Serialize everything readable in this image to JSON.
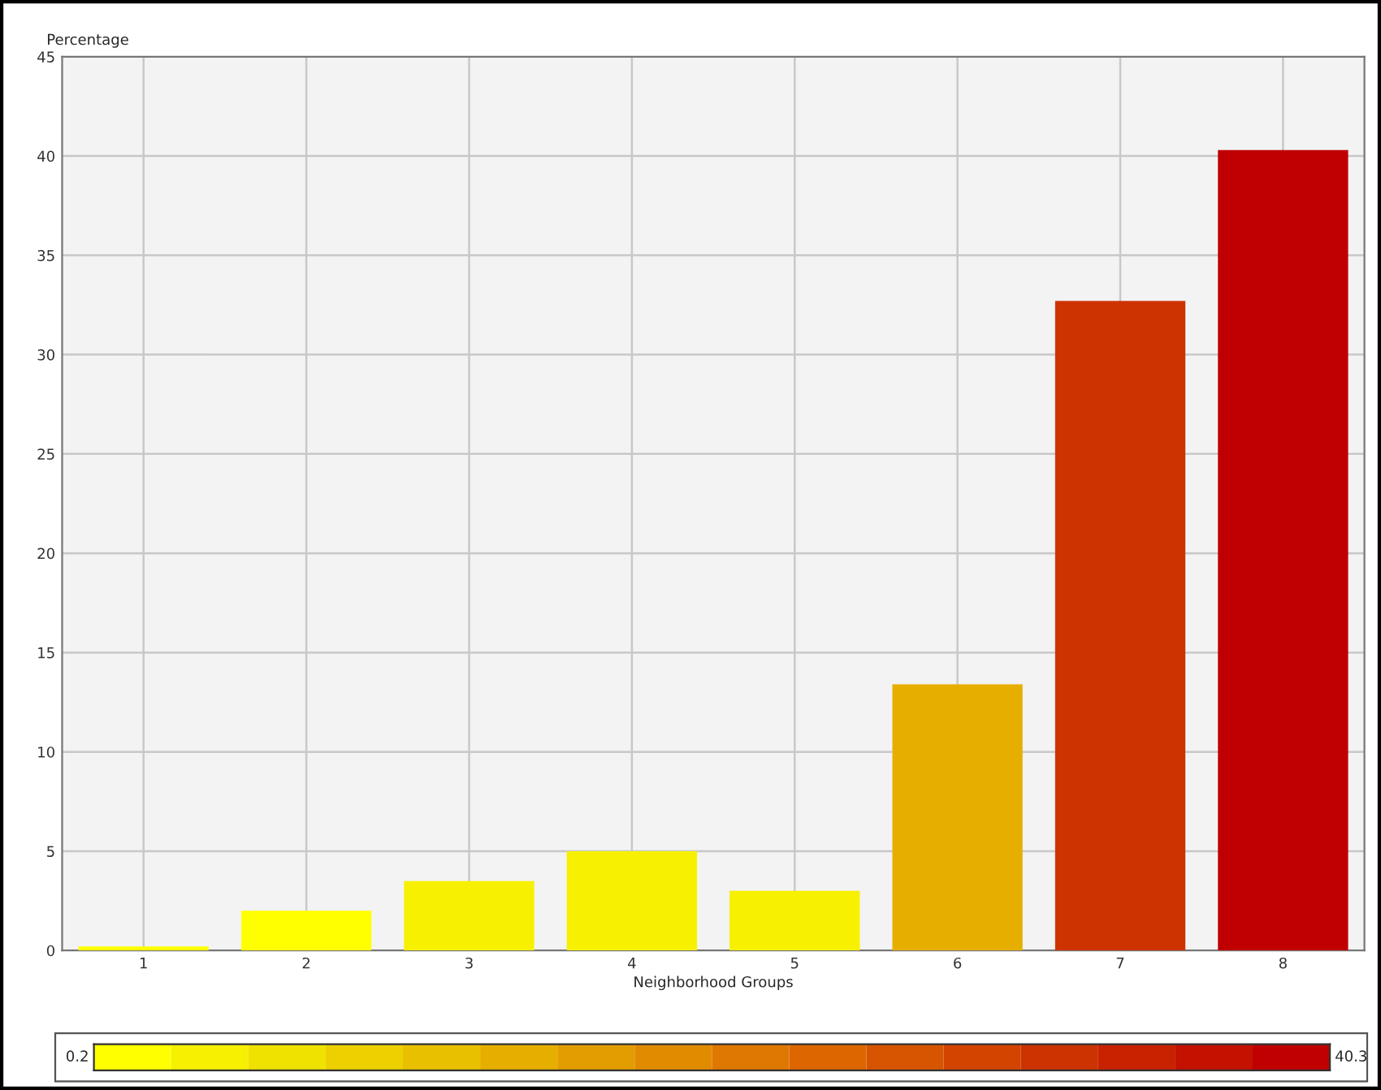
{
  "chart_data": {
    "type": "bar",
    "xlabel": "Neighborhood Groups",
    "ylabel": "Percentage",
    "categories": [
      "1",
      "2",
      "3",
      "4",
      "5",
      "6",
      "7",
      "8"
    ],
    "values": [
      0.2,
      2.0,
      3.5,
      5.0,
      3.0,
      13.4,
      32.7,
      40.3
    ],
    "ylim": [
      0,
      45
    ],
    "yticks": [
      0,
      5,
      10,
      15,
      20,
      25,
      30,
      35,
      40,
      45
    ],
    "clim": [
      0.2,
      40.3
    ],
    "cticks": [
      0.2,
      40.3
    ],
    "grid": true
  }
}
